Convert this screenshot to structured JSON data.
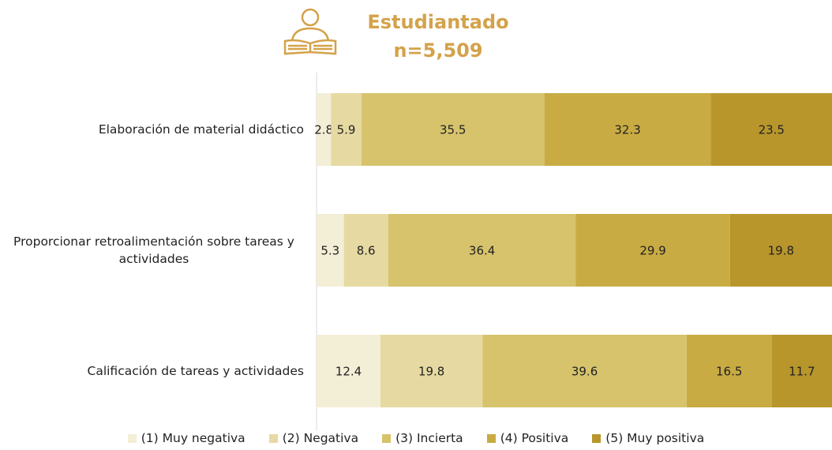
{
  "chart_data": {
    "type": "stacked-barh",
    "title": "Estudiantado",
    "subtitle": "n=5,509",
    "categories": [
      "Elaboración de material didáctico",
      "Proporcionar retroalimentación sobre tareas y actividades",
      "Calificación de tareas y actividades"
    ],
    "series": [
      {
        "name": "(1) Muy negativa",
        "color": "#f3eed6",
        "values": [
          2.8,
          5.3,
          12.4
        ]
      },
      {
        "name": "(2) Negativa",
        "color": "#e6daa2",
        "values": [
          5.9,
          8.6,
          19.8
        ]
      },
      {
        "name": "(3) Incierta",
        "color": "#d6c36c",
        "values": [
          35.5,
          36.4,
          39.6
        ]
      },
      {
        "name": "(4) Positiva",
        "color": "#c8ab43",
        "values": [
          32.3,
          29.9,
          16.5
        ]
      },
      {
        "name": "(5) Muy positiva",
        "color": "#b8962c",
        "values": [
          23.5,
          19.8,
          11.7
        ]
      }
    ],
    "xlim": [
      0,
      100
    ],
    "legend": "bottom"
  }
}
